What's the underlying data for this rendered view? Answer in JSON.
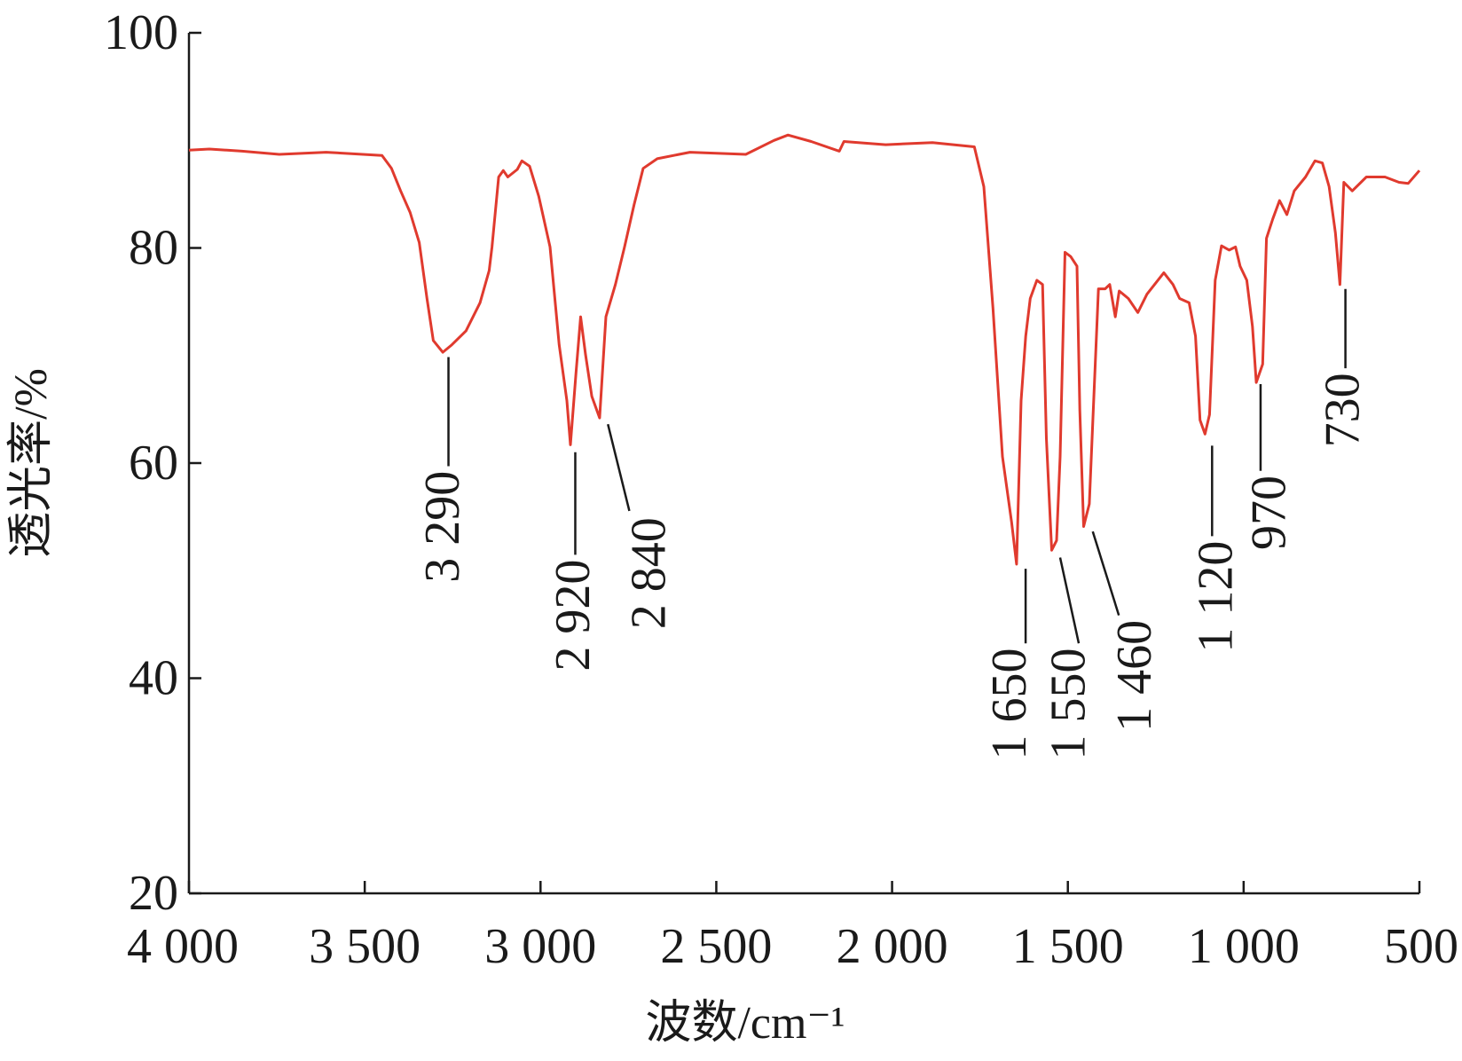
{
  "chart_data": {
    "type": "line",
    "xlabel": "波数/cm⁻¹",
    "ylabel": "透光率/%",
    "xlim": [
      4000,
      500
    ],
    "ylim": [
      20,
      100
    ],
    "xticks": [
      {
        "value": 4000,
        "label": "4 000"
      },
      {
        "value": 3500,
        "label": "3 500"
      },
      {
        "value": 3000,
        "label": "3 000"
      },
      {
        "value": 2500,
        "label": "2 500"
      },
      {
        "value": 2000,
        "label": "2 000"
      },
      {
        "value": 1500,
        "label": "1 500"
      },
      {
        "value": 1000,
        "label": "1 000"
      },
      500
    ],
    "yticks": [
      20,
      40,
      60,
      80,
      100
    ],
    "series": [
      {
        "color": "#e03a2e",
        "x": [
          4000,
          3942,
          3849,
          3743,
          3610,
          3451,
          3424,
          3398,
          3371,
          3345,
          3323,
          3305,
          3278,
          3252,
          3212,
          3172,
          3146,
          3138,
          3119,
          3106,
          3093,
          3066,
          3053,
          3031,
          3005,
          2973,
          2947,
          2925,
          2915,
          2899,
          2886,
          2872,
          2854,
          2832,
          2814,
          2787,
          2761,
          2734,
          2708,
          2668,
          2575,
          2416,
          2336,
          2296,
          2230,
          2150,
          2137,
          2018,
          1885,
          1766,
          1739,
          1713,
          1686,
          1660,
          1646,
          1633,
          1620,
          1607,
          1588,
          1572,
          1561,
          1546,
          1532,
          1522,
          1508,
          1492,
          1474,
          1466,
          1455,
          1439,
          1429,
          1413,
          1394,
          1381,
          1365,
          1354,
          1328,
          1301,
          1275,
          1227,
          1201,
          1182,
          1155,
          1137,
          1124,
          1110,
          1097,
          1081,
          1063,
          1041,
          1023,
          1010,
          991,
          975,
          964,
          946,
          935,
          917,
          898,
          877,
          856,
          824,
          797,
          776,
          757,
          739,
          726,
          715,
          691,
          651,
          598,
          558,
          532,
          500
        ],
        "values": [
          89.1,
          89.2,
          89.0,
          88.7,
          88.9,
          88.6,
          87.4,
          85.3,
          83.3,
          80.5,
          75.3,
          71.4,
          70.3,
          71.0,
          72.3,
          74.9,
          77.9,
          80.1,
          86.6,
          87.2,
          86.6,
          87.3,
          88.1,
          87.6,
          84.8,
          80.1,
          71.0,
          65.8,
          61.7,
          68.4,
          73.6,
          70.1,
          66.2,
          64.2,
          73.6,
          76.6,
          80.1,
          84.0,
          87.4,
          88.3,
          88.9,
          88.7,
          90.0,
          90.5,
          89.9,
          89.0,
          89.9,
          89.6,
          89.8,
          89.4,
          85.7,
          74.4,
          60.6,
          54.5,
          50.6,
          65.8,
          71.8,
          75.3,
          77.0,
          76.6,
          62.3,
          51.9,
          52.8,
          60.6,
          79.6,
          79.2,
          78.3,
          64.9,
          54.1,
          56.2,
          64.0,
          76.2,
          76.2,
          76.6,
          73.6,
          76.0,
          75.3,
          74.0,
          75.7,
          77.7,
          76.6,
          75.3,
          74.9,
          71.8,
          64.0,
          62.7,
          64.5,
          77.0,
          80.2,
          79.8,
          80.1,
          78.3,
          77.0,
          72.7,
          67.5,
          69.2,
          80.9,
          82.7,
          84.4,
          83.1,
          85.3,
          86.6,
          88.1,
          87.9,
          85.7,
          81.4,
          76.6,
          86.1,
          85.3,
          86.6,
          86.6,
          86.1,
          86.0,
          87.2
        ]
      }
    ],
    "annotations": [
      {
        "text": "3 290"
      },
      {
        "text": "2 920"
      },
      {
        "text": "2 840"
      },
      {
        "text": "1 650"
      },
      {
        "text": "1 550"
      },
      {
        "text": "1 460"
      },
      {
        "text": "1 120"
      },
      {
        "text": "970"
      },
      {
        "text": "730"
      }
    ]
  }
}
